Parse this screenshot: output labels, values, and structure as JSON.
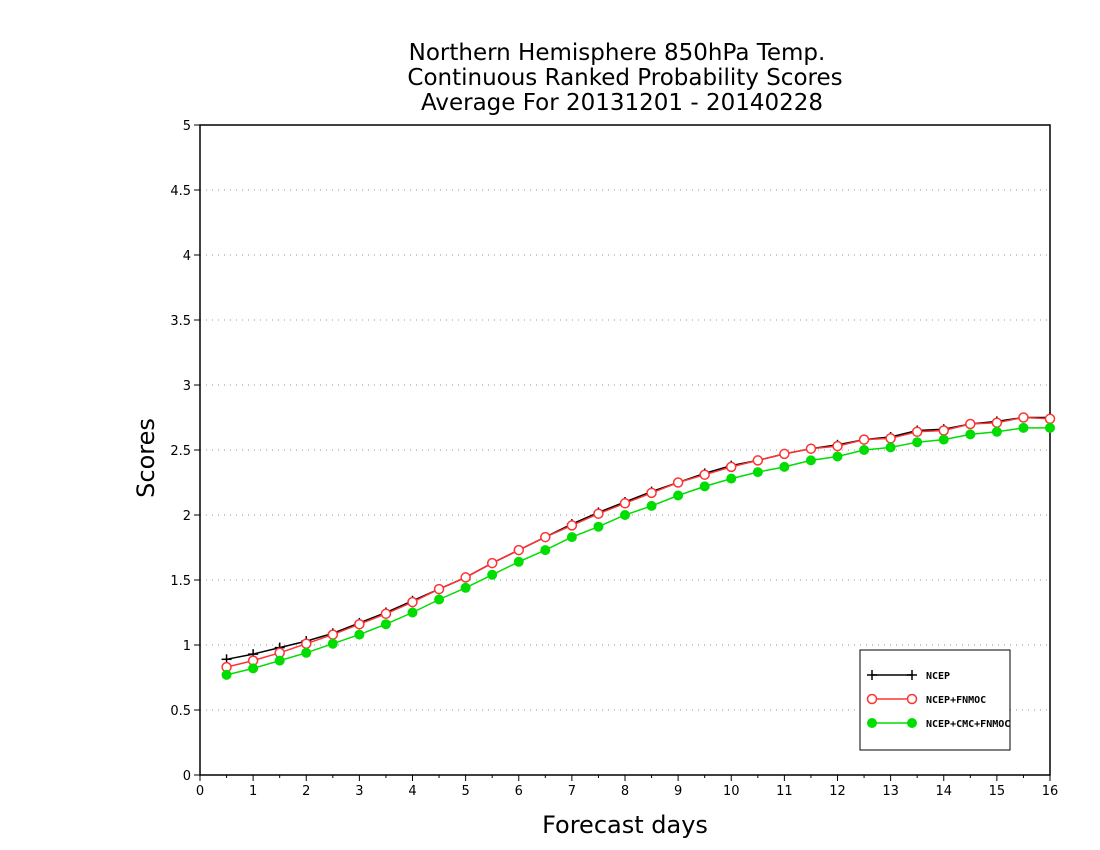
{
  "chart_data": {
    "type": "line",
    "title_lines": [
      "Northern Hemisphere 850hPa Temp.",
      "Continuous Ranked Probability Scores",
      "Average For 20131201 - 20140228"
    ],
    "xlabel": "Forecast days",
    "ylabel": "Scores",
    "xlim": [
      0,
      16
    ],
    "ylim": [
      0,
      5
    ],
    "xticks": [
      "0",
      "1",
      "2",
      "3",
      "4",
      "5",
      "6",
      "7",
      "8",
      "9",
      "10",
      "11",
      "12",
      "13",
      "14",
      "15",
      "16"
    ],
    "yticks": [
      "0",
      "0.5",
      "1",
      "1.5",
      "2",
      "2.5",
      "3",
      "3.5",
      "4",
      "4.5",
      "5"
    ],
    "grid": "horizontal dotted",
    "legend_position": "bottom-right",
    "x": [
      0.5,
      1,
      1.5,
      2,
      2.5,
      3,
      3.5,
      4,
      4.5,
      5,
      5.5,
      6,
      6.5,
      7,
      7.5,
      8,
      8.5,
      9,
      9.5,
      10,
      10.5,
      11,
      11.5,
      12,
      12.5,
      13,
      13.5,
      14,
      14.5,
      15,
      15.5,
      16
    ],
    "series": [
      {
        "name": "NCEP",
        "color": "#000000",
        "marker": "plus",
        "values": [
          0.89,
          0.93,
          0.98,
          1.03,
          1.09,
          1.17,
          1.25,
          1.34,
          1.43,
          1.52,
          1.63,
          1.73,
          1.83,
          1.93,
          2.02,
          2.1,
          2.18,
          2.25,
          2.32,
          2.38,
          2.42,
          2.47,
          2.51,
          2.54,
          2.58,
          2.6,
          2.65,
          2.66,
          2.7,
          2.72,
          2.75,
          2.75
        ]
      },
      {
        "name": "NCEP+FNMOC",
        "color": "#ff3333",
        "marker": "open-circle",
        "values": [
          0.83,
          0.88,
          0.94,
          1.01,
          1.08,
          1.16,
          1.24,
          1.33,
          1.43,
          1.52,
          1.63,
          1.73,
          1.83,
          1.92,
          2.01,
          2.09,
          2.17,
          2.25,
          2.31,
          2.37,
          2.42,
          2.47,
          2.51,
          2.53,
          2.58,
          2.59,
          2.64,
          2.65,
          2.7,
          2.71,
          2.75,
          2.74
        ]
      },
      {
        "name": "NCEP+CMC+FNMOC",
        "color": "#00dd00",
        "marker": "filled-circle",
        "values": [
          0.77,
          0.82,
          0.88,
          0.94,
          1.01,
          1.08,
          1.16,
          1.25,
          1.35,
          1.44,
          1.54,
          1.64,
          1.73,
          1.83,
          1.91,
          2.0,
          2.07,
          2.15,
          2.22,
          2.28,
          2.33,
          2.37,
          2.42,
          2.45,
          2.5,
          2.52,
          2.56,
          2.58,
          2.62,
          2.64,
          2.67,
          2.67
        ]
      }
    ]
  }
}
